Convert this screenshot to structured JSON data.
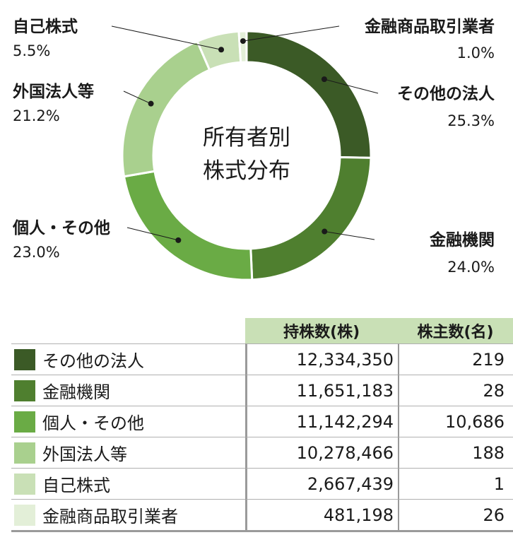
{
  "chart_data": {
    "type": "pie",
    "title": "所有者別\n株式分布",
    "categories": [
      "その他の法人",
      "金融機関",
      "個人・その他",
      "外国法人等",
      "自己株式",
      "金融商品取引業者"
    ],
    "values": [
      25.3,
      24.0,
      23.0,
      21.2,
      5.5,
      1.0
    ],
    "value_labels": [
      "25.3%",
      "24.0%",
      "23.0%",
      "21.2%",
      "5.5%",
      "1.0%"
    ],
    "colors": [
      "#3b5a26",
      "#4f7f2f",
      "#6aab45",
      "#a9d08e",
      "#c9e0b6",
      "#e3efd8"
    ]
  },
  "center": {
    "line1": "所有者別",
    "line2": "株式分布"
  },
  "table": {
    "headers": {
      "shares": "持株数(株)",
      "holders": "株主数(名)"
    },
    "rows": [
      {
        "name": "その他の法人",
        "shares": "12,334,350",
        "holders": "219"
      },
      {
        "name": "金融機関",
        "shares": "11,651,183",
        "holders": "28"
      },
      {
        "name": "個人・その他",
        "shares": "11,142,294",
        "holders": "10,686"
      },
      {
        "name": "外国法人等",
        "shares": "10,278,466",
        "holders": "188"
      },
      {
        "name": "自己株式",
        "shares": "2,667,439",
        "holders": "1"
      },
      {
        "name": "金融商品取引業者",
        "shares": "481,198",
        "holders": "26"
      }
    ]
  }
}
